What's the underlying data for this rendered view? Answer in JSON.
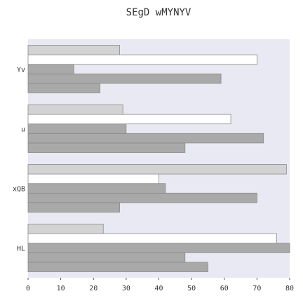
{
  "chart_data": {
    "type": "bar",
    "orientation": "horizontal",
    "title": "SEgD wMYNYV",
    "xlabel": "",
    "ylabel": "",
    "categories": [
      "HL",
      "xQB",
      "u",
      "Yv"
    ],
    "series": [
      {
        "values": [
          55,
          28,
          48,
          22
        ],
        "color": "#a9a9a9"
      },
      {
        "values": [
          48,
          70,
          72,
          59
        ],
        "color": "#a9a9a9"
      },
      {
        "values": [
          80,
          42,
          30,
          14
        ],
        "color": "#a9a9a9"
      },
      {
        "values": [
          76,
          40,
          62,
          70
        ],
        "color": "#ffffff"
      },
      {
        "values": [
          23,
          79,
          29,
          28
        ],
        "color": "#d3d3d3"
      }
    ],
    "xlim": [
      0,
      80
    ],
    "xticks": [
      "0",
      "10",
      "20",
      "30",
      "40",
      "50",
      "60",
      "70",
      "80"
    ],
    "grid": false,
    "background": "#e9e9f3"
  }
}
